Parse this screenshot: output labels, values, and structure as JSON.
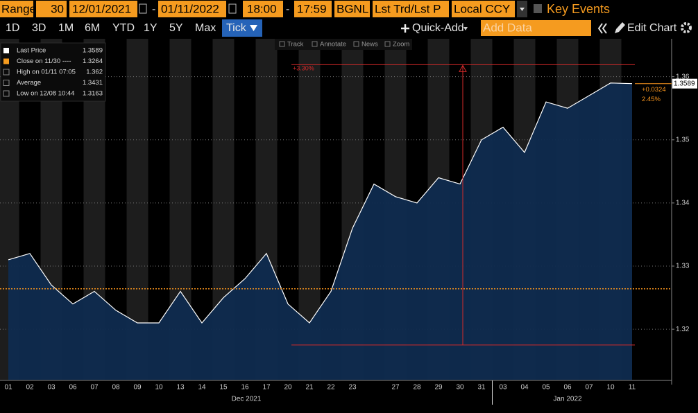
{
  "toolbar": {
    "range_label": "Range",
    "range_value": "30",
    "start_date": "12/01/2021",
    "end_date": "01/11/2022",
    "start_time": "18:00",
    "end_time": "17:59",
    "source": "BGNL",
    "field": "Lst Trd/Lst P",
    "currency": "Local CCY",
    "key_events": "Key Events"
  },
  "periods": [
    "1D",
    "3D",
    "1M",
    "6M",
    "YTD",
    "1Y",
    "5Y",
    "Max"
  ],
  "period_selected": "Tick",
  "quick_add": "Quick-Add",
  "add_data": "Add Data",
  "edit_chart": "Edit Chart",
  "chart_tools": [
    "Track",
    "Annotate",
    "News",
    "Zoom"
  ],
  "legend_box": [
    {
      "label": "Last Price",
      "value": "1.3589"
    },
    {
      "label": "Close on 11/30 ----",
      "value": "1.3264"
    },
    {
      "label": "High on 01/11 07:05",
      "value": "1.362"
    },
    {
      "label": "Average",
      "value": "1.3431"
    },
    {
      "label": "Low on 12/08 10:44",
      "value": "1.3163"
    }
  ],
  "chart_data": {
    "type": "area",
    "categories": [
      "01",
      "02",
      "03",
      "06",
      "07",
      "08",
      "09",
      "10",
      "13",
      "14",
      "15",
      "16",
      "17",
      "20",
      "21",
      "22",
      "23",
      null,
      "27",
      "28",
      "29",
      "30",
      "31",
      "03",
      "04",
      "05",
      "06",
      "07",
      "10",
      "11"
    ],
    "values": [
      1.331,
      1.332,
      1.327,
      1.324,
      1.326,
      1.323,
      1.321,
      1.321,
      1.326,
      1.321,
      1.325,
      1.328,
      1.332,
      1.324,
      1.321,
      1.326,
      1.336,
      1.343,
      1.341,
      1.34,
      1.344,
      1.343,
      1.35,
      1.352,
      1.348,
      1.356,
      1.355,
      1.357,
      1.359,
      1.3589
    ],
    "x_groups": [
      "Dec 2021",
      "Jan 2022"
    ],
    "color": "#0f2b4f",
    "line_color": "#ffffff",
    "ylim": [
      1.312,
      1.366
    ],
    "yticks": [
      1.32,
      1.33,
      1.34,
      1.35,
      1.36
    ],
    "grid": true,
    "reference_line": {
      "value": 1.3264,
      "color": "#f7941d"
    },
    "range_annotation": {
      "label": "+3.30%",
      "low": 1.3175,
      "high": 1.3619,
      "color": "#d42a2a"
    },
    "last": {
      "value": 1.3589,
      "change": "+0.0324",
      "change_pct": "2.45%"
    }
  }
}
